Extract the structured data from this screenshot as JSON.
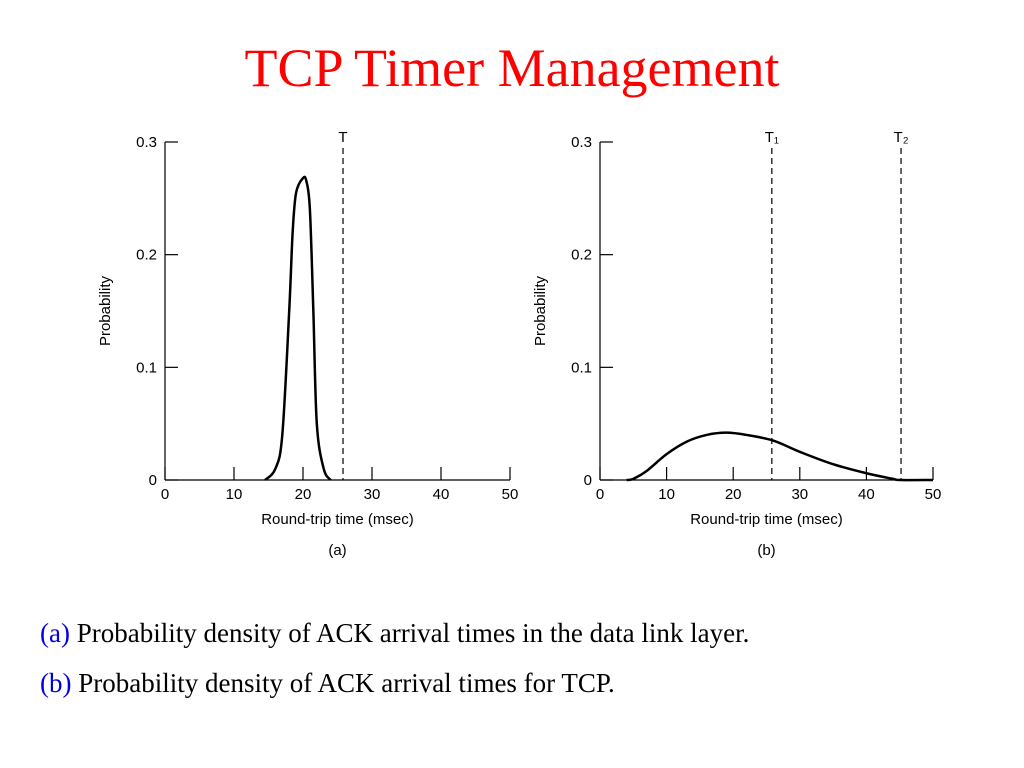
{
  "title": "TCP Timer Management",
  "captions": [
    {
      "label": "(a)",
      "text": "Probability density of ACK arrival times in the data link layer."
    },
    {
      "label": "(b)",
      "text": "Probability density of  ACK arrival times for TCP."
    }
  ],
  "chart_data": [
    {
      "type": "line",
      "caption": "(a)",
      "xlabel": "Round-trip time (msec)",
      "ylabel": "Probability",
      "x": [
        14.5,
        16,
        17,
        18,
        18.5,
        19,
        20,
        20.5,
        21,
        21.5,
        22,
        23,
        24
      ],
      "values": [
        0,
        0.01,
        0.04,
        0.15,
        0.22,
        0.255,
        0.268,
        0.265,
        0.24,
        0.15,
        0.05,
        0.01,
        0
      ],
      "color": "#000000",
      "xlim": [
        0,
        50
      ],
      "xticks": [
        0,
        10,
        20,
        30,
        40,
        50
      ],
      "ylim": [
        0,
        0.3
      ],
      "yticks": [
        0,
        0.1,
        0.2,
        0.3
      ],
      "markers": [
        {
          "x": 25.8,
          "label": "T"
        }
      ]
    },
    {
      "type": "line",
      "caption": "(b)",
      "xlabel": "Round-trip time (msec)",
      "ylabel": "Probability",
      "x": [
        4,
        5,
        7,
        10,
        13,
        16,
        19,
        22,
        26,
        30,
        35,
        40,
        44,
        45,
        50
      ],
      "values": [
        0,
        0.001,
        0.008,
        0.023,
        0.034,
        0.04,
        0.042,
        0.04,
        0.035,
        0.025,
        0.014,
        0.006,
        0.001,
        0,
        0
      ],
      "color": "#000000",
      "xlim": [
        0,
        50
      ],
      "xticks": [
        0,
        10,
        20,
        30,
        40,
        50
      ],
      "ylim": [
        0,
        0.3
      ],
      "yticks": [
        0,
        0.1,
        0.2,
        0.3
      ],
      "markers": [
        {
          "x": 25.8,
          "label": "T₁"
        },
        {
          "x": 45.2,
          "label": "T₂"
        }
      ]
    }
  ]
}
